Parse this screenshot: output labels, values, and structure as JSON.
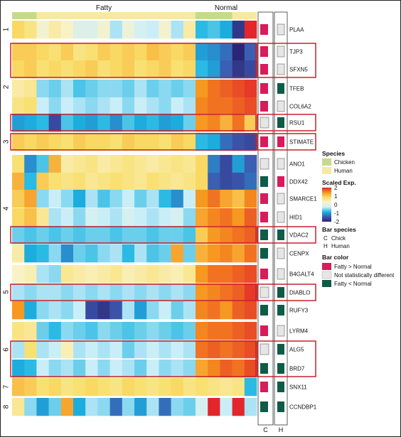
{
  "chart_data": {
    "type": "heatmap",
    "groups": [
      "Fatty",
      "Normal"
    ],
    "columns": 20,
    "column_group": [
      "Fatty",
      "Fatty",
      "Fatty",
      "Fatty",
      "Fatty",
      "Fatty",
      "Fatty",
      "Fatty",
      "Fatty",
      "Fatty",
      "Fatty",
      "Fatty",
      "Fatty",
      "Fatty",
      "Fatty",
      "Normal",
      "Normal",
      "Normal",
      "Normal",
      "Normal"
    ],
    "column_species": [
      "Chicken",
      "Chicken",
      "Human",
      "Human",
      "Human",
      "Human",
      "Human",
      "Human",
      "Human",
      "Human",
      "Human",
      "Human",
      "Human",
      "Human",
      "Human",
      "Chicken",
      "Chicken",
      "Chicken",
      "Human",
      "Human"
    ],
    "genes": [
      "PLAA",
      "TJP3",
      "SFXN5",
      "TFEB",
      "COL6A2",
      "RSU1",
      "STIMATE",
      "ANO1",
      "DDX42",
      "SMARCE1",
      "HID1",
      "VDAC2",
      "CENPX",
      "B4GALT4",
      "DIABLO",
      "RUFY3",
      "LYRM4",
      "ALG5",
      "BRD7",
      "SNX11",
      "CCNDBP1"
    ],
    "clusters": [
      {
        "label": "1",
        "genes": [
          "PLAA"
        ]
      },
      {
        "label": "2",
        "genes": [
          "TJP3",
          "SFXN5",
          "TFEB",
          "COL6A2",
          "RSU1"
        ]
      },
      {
        "label": "3",
        "genes": [
          "STIMATE"
        ]
      },
      {
        "label": "4",
        "genes": [
          "ANO1",
          "DDX42",
          "SMARCE1",
          "HID1",
          "VDAC2",
          "CENPX"
        ]
      },
      {
        "label": "5",
        "genes": [
          "B4GALT4",
          "DIABLO",
          "RUFY3"
        ]
      },
      {
        "label": "6",
        "genes": [
          "LYRM4",
          "ALG5",
          "BRD7"
        ]
      },
      {
        "label": "7",
        "genes": [
          "SNX11"
        ]
      },
      {
        "label": "8",
        "genes": [
          "CCNDBP1"
        ]
      }
    ],
    "values": [
      [
        0.9,
        0.7,
        0.2,
        0.5,
        0.3,
        -0.1,
        -0.1,
        0.2,
        -0.4,
        0.1,
        -0.2,
        -0.3,
        0.2,
        -0.4,
        0.5,
        -0.8,
        -0.7,
        -0.9,
        -1.8,
        2.0
      ],
      [
        1.0,
        1.0,
        0.9,
        0.8,
        1.0,
        0.7,
        0.8,
        1.0,
        0.9,
        1.0,
        0.9,
        1.1,
        1.0,
        0.9,
        1.0,
        -1.0,
        -1.1,
        -1.3,
        -2.0,
        -1.4
      ],
      [
        0.9,
        1.0,
        0.8,
        0.9,
        0.8,
        0.9,
        1.0,
        0.8,
        0.9,
        1.0,
        0.8,
        0.9,
        1.0,
        0.8,
        0.9,
        -0.8,
        -1.0,
        -1.4,
        -1.8,
        -1.6
      ],
      [
        0.5,
        0.6,
        -0.5,
        -0.6,
        -0.4,
        -0.7,
        -0.6,
        -0.5,
        -0.5,
        -0.6,
        -0.4,
        -0.6,
        -0.5,
        -0.6,
        -0.5,
        1.4,
        1.6,
        1.7,
        1.8,
        1.9
      ],
      [
        0.7,
        0.8,
        -0.3,
        -0.5,
        -0.3,
        -0.4,
        -0.5,
        -0.4,
        -0.3,
        -0.5,
        -0.3,
        -0.4,
        -0.5,
        -0.3,
        -0.4,
        1.5,
        1.6,
        1.6,
        1.7,
        1.8
      ],
      [
        -1.0,
        -0.9,
        -0.8,
        -1.6,
        -0.7,
        -0.9,
        -1.0,
        -0.8,
        -1.1,
        -0.7,
        -0.9,
        -0.8,
        -1.0,
        -0.9,
        -0.6,
        1.4,
        1.5,
        1.2,
        1.6,
        1.0
      ],
      [
        1.0,
        0.9,
        1.0,
        0.9,
        0.8,
        1.0,
        0.9,
        0.9,
        0.8,
        1.0,
        0.9,
        0.9,
        0.8,
        1.0,
        0.9,
        -0.8,
        -0.9,
        -1.3,
        -1.5,
        -1.6
      ],
      [
        0.8,
        -1.1,
        -0.7,
        1.2,
        0.5,
        0.6,
        0.7,
        0.5,
        0.6,
        0.7,
        0.6,
        0.5,
        0.6,
        0.7,
        0.6,
        0.9,
        -1.2,
        -1.6,
        -1.0,
        -1.4
      ],
      [
        1.2,
        -0.8,
        1.0,
        0.8,
        0.7,
        0.8,
        0.6,
        0.7,
        0.8,
        0.7,
        0.6,
        0.8,
        0.7,
        0.6,
        0.7,
        0.9,
        -1.4,
        -1.6,
        -1.5,
        -1.3
      ],
      [
        1.0,
        1.3,
        -0.5,
        -0.3,
        -0.5,
        -0.9,
        -0.4,
        -0.7,
        -0.5,
        -0.3,
        -0.6,
        -0.4,
        -0.8,
        -1.1,
        -0.3,
        1.4,
        1.6,
        1.3,
        1.1,
        1.5
      ],
      [
        0.9,
        1.1,
        0.6,
        -0.4,
        -0.3,
        -0.5,
        -0.2,
        -0.3,
        -0.4,
        -0.2,
        -0.3,
        -0.4,
        -0.3,
        -0.2,
        -0.5,
        1.3,
        1.5,
        1.6,
        1.4,
        1.7
      ],
      [
        -0.6,
        -0.7,
        -0.6,
        -0.7,
        -0.6,
        -0.7,
        -0.6,
        -0.6,
        -0.7,
        -0.6,
        -0.6,
        -0.7,
        -0.6,
        -0.6,
        -0.7,
        1.0,
        1.4,
        1.5,
        1.6,
        1.7
      ],
      [
        0.5,
        -0.9,
        -0.8,
        -0.5,
        -1.1,
        -0.6,
        -0.7,
        -0.5,
        -0.4,
        -0.8,
        -0.4,
        -0.7,
        -0.6,
        1.3,
        -0.6,
        1.2,
        1.4,
        1.5,
        1.3,
        1.6
      ],
      [
        0.3,
        0.4,
        -0.4,
        -0.5,
        0.6,
        0.5,
        0.4,
        0.5,
        0.6,
        0.4,
        0.5,
        0.6,
        0.5,
        0.4,
        0.6,
        1.4,
        1.6,
        1.6,
        1.7,
        1.8
      ],
      [
        -0.4,
        -0.5,
        -0.4,
        -0.4,
        -0.5,
        -0.4,
        -0.5,
        -0.4,
        -0.5,
        -0.4,
        -0.5,
        -0.4,
        -0.5,
        -0.4,
        -0.5,
        1.4,
        1.5,
        1.6,
        1.7,
        1.9
      ],
      [
        1.4,
        -0.9,
        -0.5,
        -0.4,
        -0.5,
        -0.3,
        -1.6,
        -1.8,
        -1.5,
        -0.4,
        -1.0,
        -0.5,
        -0.3,
        -0.6,
        -0.4,
        1.5,
        1.6,
        1.4,
        1.7,
        1.8
      ],
      [
        0.7,
        0.6,
        -0.6,
        -0.8,
        -0.5,
        -0.6,
        -0.7,
        -0.5,
        -0.6,
        -0.7,
        -0.6,
        -0.5,
        -0.6,
        -0.7,
        -0.6,
        1.5,
        1.6,
        1.6,
        1.7,
        1.8
      ],
      [
        -0.4,
        0.8,
        -0.4,
        -0.3,
        0.4,
        -0.4,
        -0.3,
        -0.4,
        -0.3,
        -0.6,
        -0.4,
        -0.3,
        -0.4,
        -0.3,
        -0.4,
        1.6,
        1.7,
        1.6,
        1.7,
        1.8
      ],
      [
        -0.9,
        -0.8,
        -0.3,
        -0.5,
        -0.4,
        -0.6,
        -0.3,
        -0.5,
        -0.3,
        -0.4,
        -0.6,
        -0.3,
        -0.5,
        -0.4,
        -0.5,
        1.3,
        1.5,
        1.7,
        1.6,
        1.8
      ],
      [
        1.1,
        1.0,
        0.8,
        0.9,
        0.7,
        0.8,
        0.9,
        0.8,
        0.7,
        0.9,
        0.8,
        0.7,
        0.8,
        0.9,
        0.7,
        0.8,
        0.7,
        0.6,
        0.7,
        -0.8
      ],
      [
        0.6,
        -0.5,
        -1.0,
        -0.6,
        1.3,
        -0.9,
        -0.4,
        -0.5,
        -1.3,
        -0.5,
        -1.0,
        -0.4,
        -1.3,
        -0.5,
        -0.6,
        -0.2,
        2.0,
        -0.3,
        2.0,
        -0.4
      ]
    ],
    "bar_status": [
      {
        "chick": "Fatty > Normal",
        "human": "Not statistically different"
      },
      {
        "chick": "Fatty > Normal",
        "human": "Not statistically different"
      },
      {
        "chick": "Fatty > Normal",
        "human": "Not statistically different"
      },
      {
        "chick": "Fatty > Normal",
        "human": "Fatty < Normal"
      },
      {
        "chick": "Fatty > Normal",
        "human": "Not statistically different"
      },
      {
        "chick": "Not statistically different",
        "human": "Fatty < Normal"
      },
      {
        "chick": "Fatty > Normal",
        "human": "Fatty > Normal"
      },
      {
        "chick": "Not statistically different",
        "human": "Not statistically different"
      },
      {
        "chick": "Fatty < Normal",
        "human": "Fatty > Normal"
      },
      {
        "chick": "Fatty > Normal",
        "human": "Not statistically different"
      },
      {
        "chick": "Fatty > Normal",
        "human": "Not statistically different"
      },
      {
        "chick": "Fatty < Normal",
        "human": "Fatty < Normal"
      },
      {
        "chick": "Fatty < Normal",
        "human": "Not statistically different"
      },
      {
        "chick": "Fatty > Normal",
        "human": "Not statistically different"
      },
      {
        "chick": "Not statistically different",
        "human": "Fatty < Normal"
      },
      {
        "chick": "Fatty < Normal",
        "human": "Fatty < Normal"
      },
      {
        "chick": "Fatty > Normal",
        "human": "Not statistically different"
      },
      {
        "chick": "Not statistically different",
        "human": "Fatty < Normal"
      },
      {
        "chick": "Fatty < Normal",
        "human": "Fatty < Normal"
      },
      {
        "chick": "Fatty > Normal",
        "human": "Fatty < Normal"
      },
      {
        "chick": "Fatty < Normal",
        "human": "Fatty < Normal"
      }
    ],
    "highlighted_genes": [
      [
        "TJP3",
        "SFXN5"
      ],
      [
        "RSU1"
      ],
      [
        "STIMATE"
      ],
      [
        "VDAC2"
      ],
      [
        "DIABLO"
      ],
      [
        "ALG5",
        "BRD7"
      ]
    ],
    "bar_columns": [
      "C",
      "H"
    ],
    "color_scale": {
      "min": -2,
      "max": 2,
      "ticks": [
        2,
        1,
        0,
        -1,
        -2
      ],
      "colors": [
        "#2b2576",
        "#3c5ab0",
        "#19b4e2",
        "#cfeff8",
        "#f9f3c8",
        "#f9de6a",
        "#f7941d",
        "#e2262b"
      ]
    }
  },
  "legend": {
    "species_title": "Species",
    "species": [
      {
        "label": "Chicken",
        "color": "#c7d98b"
      },
      {
        "label": "Human",
        "color": "#f7e8a5"
      }
    ],
    "scale_title": "Scaled Exp.",
    "bar_species_title": "Bar species",
    "bar_species": [
      {
        "letter": "C",
        "label": "Chick"
      },
      {
        "letter": "H",
        "label": "Human"
      }
    ],
    "bar_color_title": "Bar color",
    "bar_colors": [
      {
        "label": "Fatty > Normal",
        "color": "#d81b5a"
      },
      {
        "label": "Not statistically different",
        "color": "#e6e6e6"
      },
      {
        "label": "Fatty < Normal",
        "color": "#0e5c47"
      }
    ]
  }
}
